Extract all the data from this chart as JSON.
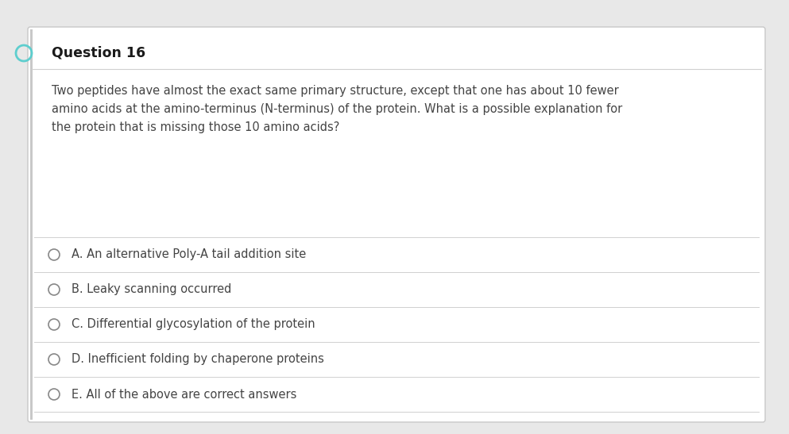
{
  "title": "Question 16",
  "question_text": "Two peptides have almost the exact same primary structure, except that one has about 10 fewer\namino acids at the amino-terminus (N-terminus) of the protein. What is a possible explanation for\nthe protein that is missing those 10 amino acids?",
  "options": [
    "A. An alternative Poly-A tail addition site",
    "B. Leaky scanning occurred",
    "C. Differential glycosylation of the protein",
    "D. Inefficient folding by chaperone proteins",
    "E. All of the above are correct answers"
  ],
  "bg_outer": "#e8e8e8",
  "bg_color": "#ffffff",
  "title_color": "#1a1a1a",
  "text_color": "#444444",
  "option_color": "#444444",
  "line_color": "#d0d0d0",
  "circle_edge_color": "#888888",
  "accent_color": "#5ecece",
  "title_fontsize": 12.5,
  "question_fontsize": 10.5,
  "option_fontsize": 10.5
}
